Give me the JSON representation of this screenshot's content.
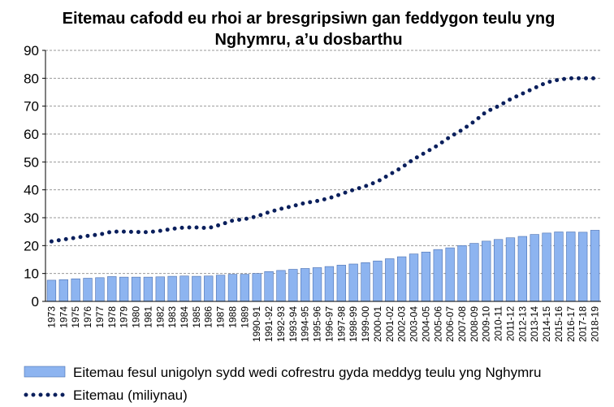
{
  "chart_data": {
    "type": "bar-line",
    "title": "Eitemau cafodd eu rhoi ar bresgripsiwn gan feddygon teulu yng Nghymru, a’u dosbarthu",
    "categories": [
      "1973",
      "1974",
      "1975",
      "1976",
      "1977",
      "1978",
      "1979",
      "1980",
      "1981",
      "1982",
      "1983",
      "1984",
      "1985",
      "1986",
      "1987",
      "1988",
      "1989",
      "1990-91",
      "1991-92",
      "1992-93",
      "1993-94",
      "1994-95",
      "1995-96",
      "1996-97",
      "1997-98",
      "1998-99",
      "1999-00",
      "2000-01",
      "2001-02",
      "2002-03",
      "2003-04",
      "2004-05",
      "2005-06",
      "2006-07",
      "2007-08",
      "2008-09",
      "2009-10",
      "2010-11",
      "2011-12",
      "2012-13",
      "2013-14",
      "2014-15",
      "2015-16",
      "2016-17",
      "2017-18",
      "2018-19"
    ],
    "series": [
      {
        "name": "Eitemau fesul unigolyn sydd wedi cofrestru gyda meddyg teulu yng Nghymru",
        "type": "bar",
        "color": "#8db4f0",
        "values": [
          7.6,
          7.8,
          8.1,
          8.3,
          8.5,
          8.9,
          8.7,
          8.7,
          8.7,
          8.8,
          9.0,
          9.1,
          9.0,
          9.1,
          9.4,
          9.7,
          9.7,
          10.0,
          10.7,
          11.1,
          11.5,
          11.8,
          12.1,
          12.5,
          13.0,
          13.4,
          13.9,
          14.5,
          15.3,
          16.0,
          17.0,
          17.7,
          18.6,
          19.2,
          20.0,
          20.8,
          21.6,
          22.2,
          22.8,
          23.3,
          24.0,
          24.5,
          24.9,
          24.9,
          24.8,
          25.5
        ]
      },
      {
        "name": "Eitemau (miliynau)",
        "type": "line",
        "color": "#0a1f5c",
        "values": [
          21.5,
          22.2,
          22.8,
          23.5,
          24.0,
          25.0,
          25.0,
          24.9,
          24.8,
          25.3,
          26.0,
          26.5,
          26.5,
          26.3,
          27.5,
          29.0,
          29.5,
          30.5,
          32.0,
          33.2,
          34.2,
          35.3,
          36.0,
          37.0,
          38.5,
          40.0,
          41.3,
          43.0,
          45.5,
          48.0,
          51.0,
          53.5,
          56.0,
          59.0,
          61.5,
          64.5,
          68.0,
          70.0,
          72.5,
          74.5,
          76.5,
          78.5,
          79.5,
          80.0,
          80.0,
          80.0
        ]
      }
    ],
    "ylim": [
      0,
      90
    ],
    "yticks": [
      0,
      10,
      20,
      30,
      40,
      50,
      60,
      70,
      80,
      90
    ],
    "grid": true
  }
}
